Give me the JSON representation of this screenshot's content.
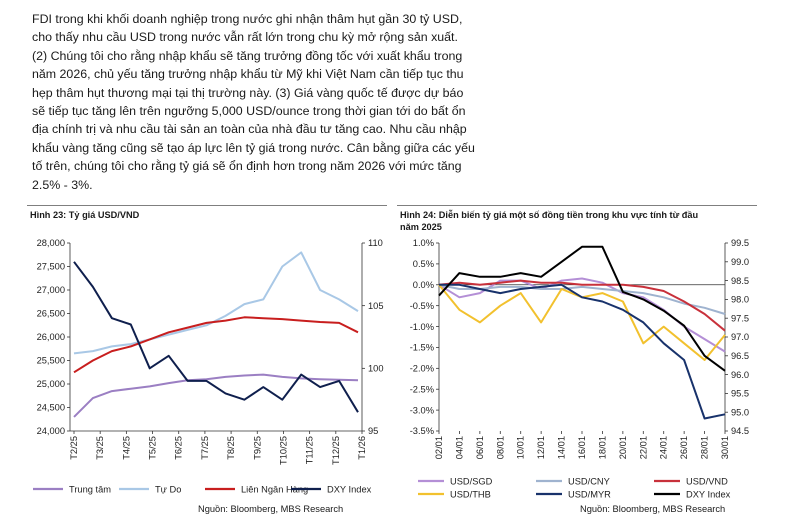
{
  "paragraph": {
    "lines": [
      "FDI trong khi khối doanh nghiệp trong nước ghi nhận thâm hụt gần 30 tỷ USD,",
      "cho thấy nhu cầu USD trong nước vẫn rất lớn trong chu kỳ mở rộng sản xuất.",
      "(2) Chúng tôi cho rằng nhập khẩu sẽ tăng trưởng đồng tốc với xuất khẩu trong",
      "năm 2026, chủ yếu tăng trưởng nhập khẩu từ Mỹ khi Việt Nam cần tiếp tục thu",
      "hẹp thâm hụt thương mại tại thị trường này. (3) Giá vàng quốc tế được dự báo",
      "sẽ tiếp tục tăng lên trên ngưỡng 5,000 USD/ounce trong thời gian tới do bất ổn",
      "địa chính trị và nhu cầu tài sản an toàn của nhà đầu tư tăng cao. Nhu cầu nhập",
      "khẩu vàng tăng cũng sẽ tạo áp lực lên tỷ giá trong nước. Cân bằng giữa các yếu",
      "tố trên, chúng tôi cho rằng tỷ giá sẽ ổn định hơn trong năm 2026 với mức tăng",
      "2.5% - 3%."
    ]
  },
  "figure23": {
    "title": "Hình 23: Tỷ giá USD/VND",
    "source": "Nguồn: Bloomberg, MBS Research"
  },
  "figure24": {
    "title_lines": [
      "Hình 24: Diễn biến tỷ giá một số đồng tiền trong khu vực tính từ đầu",
      "năm 2025"
    ],
    "source": "Nguồn: Bloomberg, MBS Research"
  },
  "chart_data": [
    {
      "type": "line",
      "left_ylim": [
        24000,
        28000
      ],
      "left_yticks": [
        "28,000",
        "27,500",
        "27,000",
        "26,500",
        "26,000",
        "25,500",
        "25,000",
        "24,500",
        "24,000"
      ],
      "right_ylim": [
        95,
        110
      ],
      "right_yticks": [
        "110",
        "105",
        "100",
        "95"
      ],
      "xticks": [
        "T2/25",
        "T3/25",
        "T4/25",
        "T5/25",
        "T6/25",
        "T7/25",
        "T8/25",
        "T9/25",
        "T10/25",
        "T11/25",
        "T12/25",
        "T1/26"
      ],
      "grid": false,
      "legend_position": "bottom",
      "series": [
        {
          "name": "Trung tâm",
          "axis": "left",
          "color": "#9b7fc3",
          "values": [
            24300,
            24700,
            24850,
            24900,
            24950,
            25020,
            25080,
            25100,
            25150,
            25180,
            25200,
            25150,
            25120,
            25100,
            25090,
            25080
          ]
        },
        {
          "name": "Tự Do",
          "axis": "left",
          "color": "#a9c8e6",
          "values": [
            25650,
            25700,
            25800,
            25850,
            25950,
            26050,
            26150,
            26250,
            26450,
            26700,
            26800,
            27500,
            27800,
            27000,
            26800,
            26550
          ]
        },
        {
          "name": "Liên Ngân Hàng",
          "axis": "left",
          "color": "#c81e1e",
          "values": [
            25250,
            25500,
            25700,
            25800,
            25950,
            26100,
            26200,
            26300,
            26350,
            26420,
            26400,
            26380,
            26350,
            26320,
            26300,
            26100
          ]
        },
        {
          "name": "DXY Index",
          "axis": "right",
          "color": "#0f1f4d",
          "values": [
            108.5,
            106.5,
            104,
            103.5,
            100,
            101,
            99,
            99,
            98,
            97.5,
            98.5,
            97.5,
            99.5,
            98.5,
            99,
            96.5
          ]
        }
      ]
    },
    {
      "type": "line",
      "left_ylim": [
        -3.5,
        1.0
      ],
      "left_yticks": [
        "1.0%",
        "0.5%",
        "0.0%",
        "-0.5%",
        "-1.0%",
        "-1.5%",
        "-2.0%",
        "-2.5%",
        "-3.0%",
        "-3.5%"
      ],
      "right_ylim": [
        94.5,
        99.5
      ],
      "right_yticks": [
        "99.5",
        "99.0",
        "98.5",
        "98.0",
        "97.5",
        "97.0",
        "96.5",
        "96.0",
        "95.5",
        "95.0",
        "94.5"
      ],
      "xticks": [
        "02/01",
        "04/01",
        "06/01",
        "08/01",
        "10/01",
        "12/01",
        "14/01",
        "16/01",
        "18/01",
        "20/01",
        "22/01",
        "24/01",
        "26/01",
        "28/01",
        "30/01"
      ],
      "grid": false,
      "legend_position": "bottom",
      "series": [
        {
          "name": "USD/SGD",
          "axis": "left",
          "color": "#b48fd6",
          "values": [
            0,
            -0.3,
            -0.2,
            0.1,
            0.1,
            -0.1,
            0.1,
            0.15,
            0.05,
            -0.2,
            -0.3,
            -0.6,
            -1.0,
            -1.3,
            -1.6
          ]
        },
        {
          "name": "USD/CNY",
          "axis": "left",
          "color": "#9fb3cf",
          "values": [
            0,
            -0.1,
            -0.1,
            -0.05,
            -0.05,
            -0.1,
            -0.1,
            -0.05,
            -0.1,
            -0.15,
            -0.2,
            -0.3,
            -0.45,
            -0.55,
            -0.7
          ]
        },
        {
          "name": "USD/VND",
          "axis": "left",
          "color": "#c8313b",
          "values": [
            0,
            0.05,
            0.0,
            0.05,
            0.1,
            0.05,
            0.05,
            0.0,
            0.0,
            0.0,
            -0.05,
            -0.15,
            -0.4,
            -0.7,
            -1.1
          ]
        },
        {
          "name": "USD/THB",
          "axis": "left",
          "color": "#f2c12e",
          "values": [
            0,
            -0.6,
            -0.9,
            -0.5,
            -0.2,
            -0.9,
            -0.1,
            -0.3,
            -0.2,
            -0.4,
            -1.4,
            -1.0,
            -1.4,
            -1.8,
            -1.2
          ]
        },
        {
          "name": "USD/MYR",
          "axis": "left",
          "color": "#18326b",
          "values": [
            0,
            0.0,
            -0.1,
            -0.2,
            -0.1,
            -0.05,
            0.0,
            -0.3,
            -0.4,
            -0.6,
            -0.9,
            -1.4,
            -1.8,
            -3.2,
            -3.1
          ]
        },
        {
          "name": "DXY Index",
          "axis": "right",
          "color": "#000000",
          "values": [
            98.1,
            98.7,
            98.6,
            98.6,
            98.7,
            98.6,
            99.0,
            99.4,
            99.4,
            98.2,
            98.0,
            97.7,
            97.3,
            96.5,
            96.1
          ]
        }
      ]
    }
  ]
}
